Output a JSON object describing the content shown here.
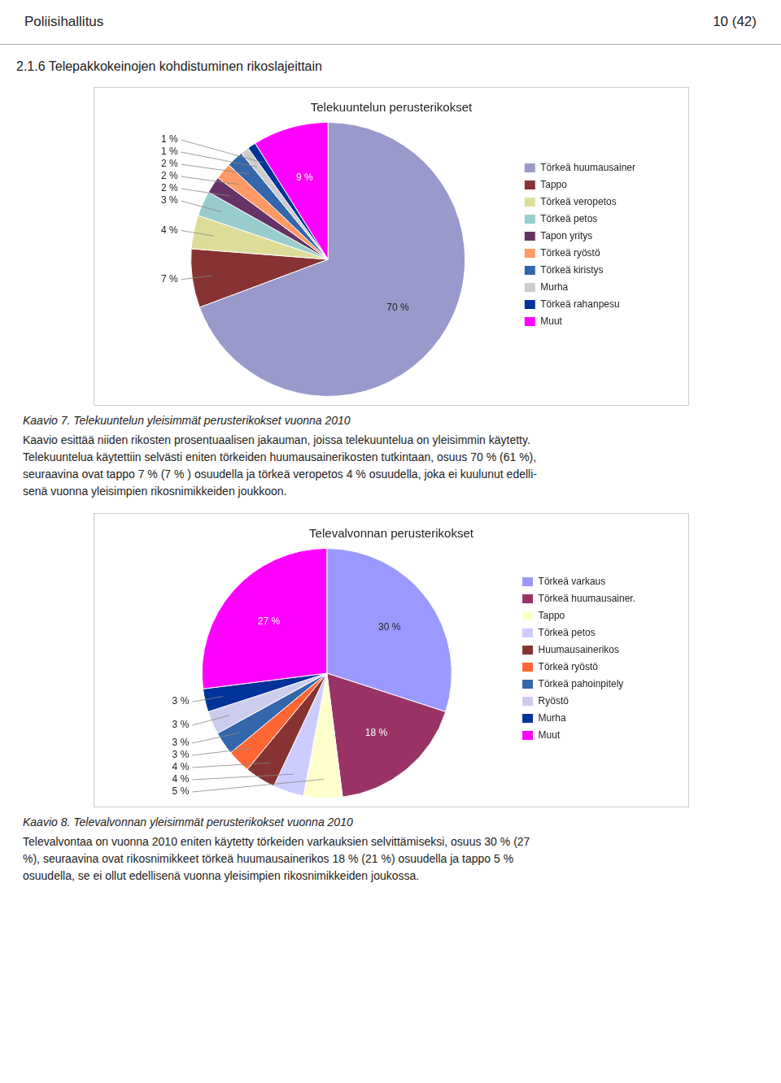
{
  "header_left": "Poliisihallitus",
  "header_right": "10 (42)",
  "section_title": "2.1.6 Telepakkokeinojen kohdistuminen rikoslajeittain",
  "captions": [
    "Kaavio 7. Telekuuntelun yleisimmät perusterikokset vuonna 2010",
    "Kaavio 8. Televalvonnan yleisimmät perusterikokset vuonna 2010"
  ],
  "body": [
    [
      "Kaavio esittää niiden rikosten prosentuaalisen jakauman, joissa telekuuntelua on yleisimmin käytetty.",
      "Telekuuntelua käytettiin selvästi eniten törkeiden huumausainerikosten tutkintaan, osuus 70 % (61 %),",
      "seuraavina ovat tappo 7 % (7 % ) osuudella ja törkeä veropetos 4 % osuudella, joka ei kuulunut edelli-",
      "senä vuonna yleisimpien rikosnimikkeiden joukkoon."
    ],
    [
      "Televalvontaa on vuonna 2010 eniten käytetty törkeiden varkauksien selvittämiseksi, osuus 30 % (27",
      "%), seuraavina ovat rikosnimikkeet törkeä huumausainerikos 18 % (21 %) osuudella ja tappo 5 %",
      "osuudella, se ei ollut edellisenä vuonna yleisimpien rikosnimikkeiden joukossa."
    ]
  ],
  "chart_data": [
    {
      "type": "pie",
      "title": "Telekuuntelun perusterikokset",
      "categories": [
        "Törkeä huumausainer",
        "Tappo",
        "Törkeä veropetos",
        "Törkeä petos",
        "Tapon yritys",
        "Törkeä ryöstö",
        "Törkeä kiristys",
        "Murha",
        "Törkeä rahanpesu",
        "Muut"
      ],
      "values": [
        70,
        7,
        4,
        3,
        2,
        2,
        2,
        1,
        1,
        9
      ],
      "value_labels": [
        "70 %",
        "7 %",
        "4 %",
        "3 %",
        "2 %",
        "2 %",
        "2 %",
        "1 %",
        "1 %",
        "9 %"
      ],
      "colors": [
        "#9999CC",
        "#883333",
        "#DDDD99",
        "#99CCCC",
        "#663366",
        "#FF9966",
        "#3366AA",
        "#CCCCCC",
        "#003399",
        "#FF00FF"
      ],
      "data_labels": true,
      "legend": "right"
    },
    {
      "type": "pie",
      "title": "Televalvonnan perusterikokset",
      "categories": [
        "Törkeä varkaus",
        "Törkeä huumausainer.",
        "Tappo",
        "Törkeä petos",
        "Huumausainerikos",
        "Törkeä ryöstö",
        "Törkeä pahoinpitely",
        "Ryöstö",
        "Murha",
        "Muut"
      ],
      "values": [
        30,
        18,
        5,
        4,
        4,
        3,
        3,
        3,
        3,
        27
      ],
      "value_labels": [
        "30 %",
        "18 %",
        "5 %",
        "4 %",
        "4 %",
        "3 %",
        "3 %",
        "3 %",
        "3 %",
        "27 %"
      ],
      "colors": [
        "#9999FF",
        "#993366",
        "#FFFFCC",
        "#CCCCFF",
        "#883333",
        "#FF6633",
        "#3366AA",
        "#CCCCEE",
        "#003399",
        "#FF00FF"
      ],
      "data_labels": true,
      "legend": "right"
    }
  ]
}
